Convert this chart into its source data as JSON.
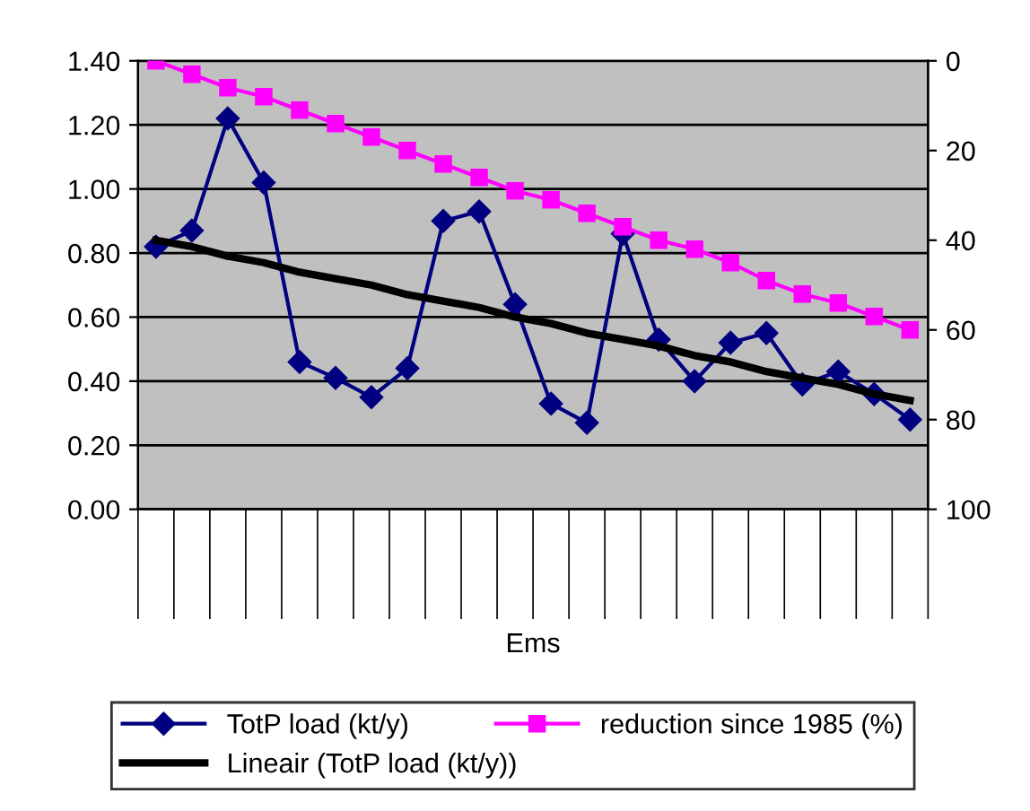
{
  "chart_data": {
    "type": "line",
    "xlabel": "Ems",
    "categories": [
      null,
      null,
      null,
      null,
      null,
      null,
      null,
      null,
      null,
      null,
      null,
      null,
      null,
      null,
      null,
      null,
      null,
      null,
      null,
      null,
      null,
      null
    ],
    "series": [
      {
        "name": "TotP load (kt/y)",
        "color": "#000080",
        "marker": "diamond",
        "values": [
          0.82,
          0.87,
          1.22,
          1.02,
          0.46,
          0.41,
          0.35,
          0.44,
          0.9,
          0.93,
          0.64,
          0.33,
          0.27,
          0.86,
          0.53,
          0.4,
          0.52,
          0.55,
          0.39,
          0.43,
          0.36,
          0.28
        ]
      },
      {
        "name": "reduction since 1985 (%)",
        "color": "#ff00ff",
        "marker": "square",
        "axis": "y2",
        "values": [
          0,
          3,
          6,
          8,
          11,
          14,
          17,
          20,
          23,
          26,
          29,
          31,
          34,
          37,
          40,
          42,
          45,
          49,
          52,
          54,
          57,
          60
        ]
      },
      {
        "name": "Lineair (TotP load (kt/y))",
        "color": "#000000",
        "marker": "none",
        "values": [
          0.84,
          0.82,
          0.79,
          0.77,
          0.74,
          0.72,
          0.7,
          0.67,
          0.65,
          0.63,
          0.6,
          0.58,
          0.55,
          0.53,
          0.51,
          0.48,
          0.46,
          0.43,
          0.41,
          0.39,
          0.36,
          0.34
        ]
      }
    ],
    "ylim": [
      0,
      1.4
    ],
    "yticks": [
      {
        "value": 0,
        "label": "0.00"
      },
      {
        "value": 0.2,
        "label": "0.20"
      },
      {
        "value": 0.4,
        "label": "0.40"
      },
      {
        "value": 0.6,
        "label": "0.60"
      },
      {
        "value": 0.8,
        "label": "0.80"
      },
      {
        "value": 1.0,
        "label": "1.00"
      },
      {
        "value": 1.2,
        "label": "1.20"
      },
      {
        "value": 1.4,
        "label": "1.40"
      }
    ],
    "y2lim": [
      100,
      0
    ],
    "y2ticks": [
      0,
      20,
      40,
      60,
      80,
      100
    ],
    "grid": "y",
    "legend": "bottom"
  }
}
